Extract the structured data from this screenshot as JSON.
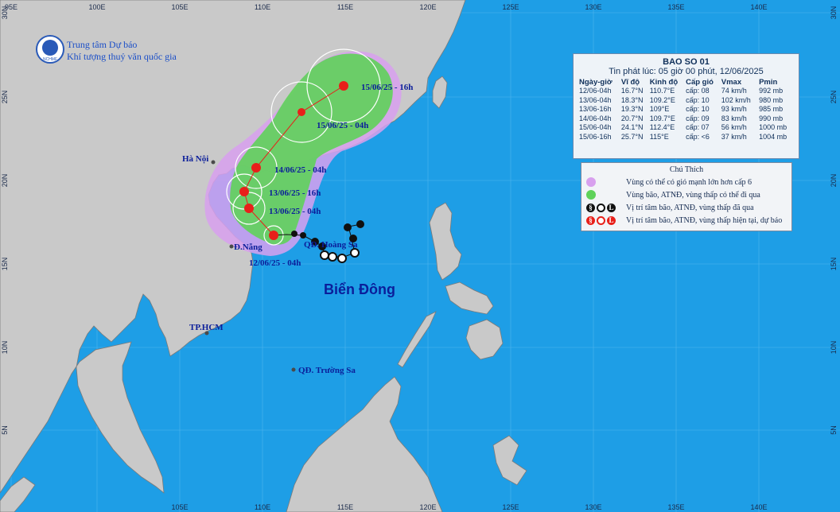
{
  "map": {
    "agency_line1": "Trung tâm Dự báo",
    "agency_line2": "Khí tượng thuỷ văn quốc gia",
    "logo_text": "NCHMF",
    "lon_labels_top": [
      "95E",
      "100E",
      "105E",
      "110E",
      "115E",
      "120E",
      "125E",
      "130E",
      "135E",
      "140E"
    ],
    "lon_labels_bottom": [
      "105E",
      "110E",
      "115E",
      "120E",
      "125E",
      "130E",
      "135E",
      "140E"
    ],
    "lat_labels": [
      "30N",
      "25N",
      "20N",
      "15N",
      "10N",
      "5N"
    ],
    "places": {
      "hanoi": "Hà Nội",
      "danang": "Đ.Nẵng",
      "tphcm": "TP.HCM",
      "hoangsa": "QĐ. Hoàng Sa",
      "truongsa": "QĐ. Trường Sa"
    },
    "sea_name": "Biển Đông",
    "track_labels": {
      "t1": "15/06/25 - 16h",
      "t2": "15/06/25 - 04h",
      "t3": "14/06/25 - 04h",
      "t4": "13/06/25 - 16h",
      "t5": "13/06/25 - 04h",
      "t6": "12/06/25 - 04h"
    },
    "colors": {
      "sea": "#1e9ee6",
      "land": "#c9c9c9",
      "strong_wind_zone": "#d8a0ee",
      "storm_zone": "#5fd25a",
      "forecast_marker": "#e8201a",
      "past_marker": "#101010",
      "label_blue": "#0b1e9a"
    }
  },
  "bulletin": {
    "title": "BAO SO 01",
    "issued": "Tin phát lúc: 05 giờ 00 phút, 12/06/2025",
    "headers": [
      "Ngày-giờ",
      "Vĩ độ",
      "Kinh độ",
      "Cấp gió",
      "Vmax",
      "Pmin"
    ],
    "rows": [
      [
        "12/06-04h",
        "16.7°N",
        "110.7°E",
        "cấp: 08",
        "74 km/h",
        "992 mb"
      ],
      [
        "13/06-04h",
        "18.3°N",
        "109.2°E",
        "cấp: 10",
        "102 km/h",
        "980 mb"
      ],
      [
        "13/06-16h",
        "19.3°N",
        "109°E",
        "cấp: 10",
        "93 km/h",
        "985 mb"
      ],
      [
        "14/06-04h",
        "20.7°N",
        "109.7°E",
        "cấp: 09",
        "83 km/h",
        "990 mb"
      ],
      [
        "15/06-04h",
        "24.1°N",
        "112.4°E",
        "cấp: 07",
        "56 km/h",
        "1000 mb"
      ],
      [
        "15/06-16h",
        "25.7°N",
        "115°E",
        "cấp: <6",
        "37 km/h",
        "1004 mb"
      ]
    ]
  },
  "legend": {
    "title": "Chú Thích",
    "items": [
      "Vùng có thể có gió mạnh lớn hơn cấp 6",
      "Vùng bão, ATNĐ, vùng thấp có thể đi qua",
      "Vị trí tâm bão, ATNĐ, vùng thấp đã qua",
      "Vị trí tâm bão, ATNĐ, vùng thấp hiện tại, dự báo"
    ],
    "icon_names": [
      "purple-zone-swatch",
      "green-zone-swatch",
      "past-position-icons",
      "forecast-position-icons"
    ]
  }
}
